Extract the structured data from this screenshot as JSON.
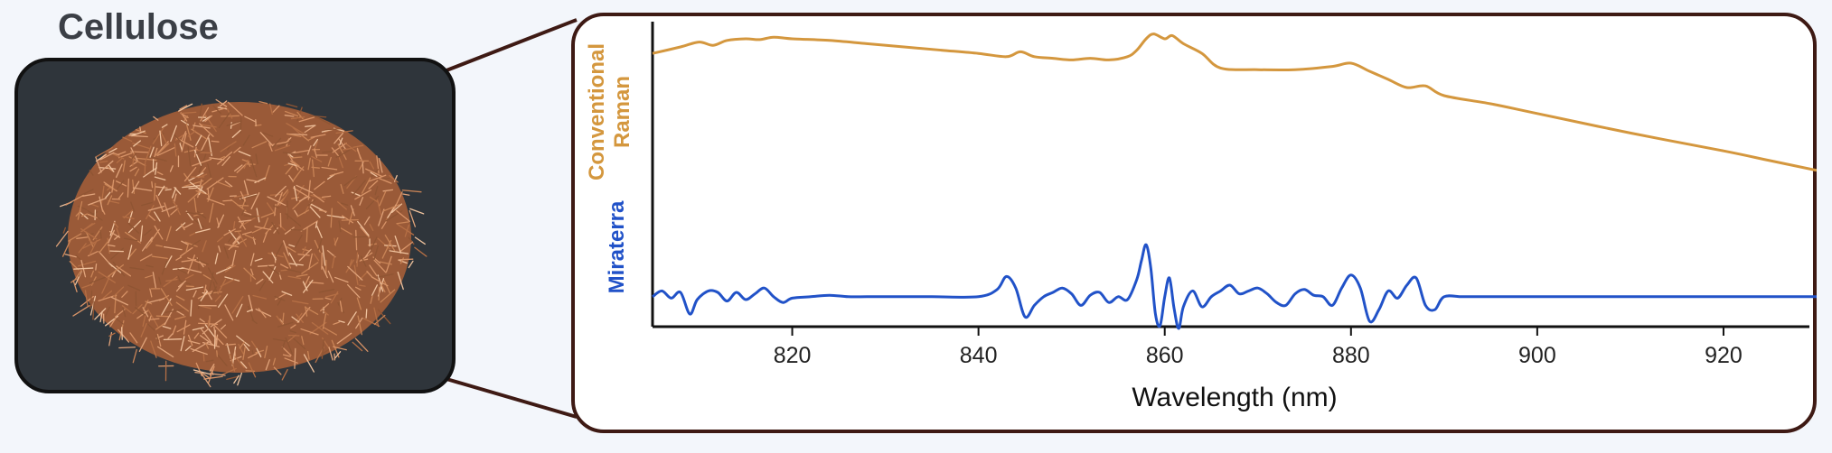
{
  "sample": {
    "title": "Cellulose"
  },
  "colors": {
    "conventional": "#d4973e",
    "miraterra": "#2152c8",
    "frame": "#3e1a14",
    "photo_fiber": "#c98456"
  },
  "icons": {
    "photo": "cellulose-fiber-photo"
  },
  "chart_data": {
    "type": "line",
    "xlabel": "Wavelength (nm)",
    "xlim": [
      805,
      930
    ],
    "xticks": [
      820,
      840,
      860,
      880,
      900,
      920
    ],
    "grid": false,
    "series": [
      {
        "name": "Conventional Raman",
        "label_lines": [
          "Conventional",
          "Raman"
        ],
        "color": "#d4973e",
        "x": [
          805,
          808,
          810,
          811.5,
          813,
          815,
          816.5,
          818,
          820,
          824,
          828,
          832,
          836,
          840,
          843,
          844.5,
          846,
          848,
          850,
          852,
          854,
          856,
          857,
          858,
          858.8,
          860,
          860.8,
          862,
          864,
          866,
          870,
          874,
          878,
          880,
          882,
          884,
          886,
          888,
          890,
          895,
          900,
          910,
          920,
          925,
          930
        ],
        "y": [
          0.86,
          0.9,
          0.93,
          0.91,
          0.94,
          0.95,
          0.945,
          0.96,
          0.95,
          0.94,
          0.92,
          0.9,
          0.88,
          0.86,
          0.84,
          0.87,
          0.84,
          0.83,
          0.82,
          0.83,
          0.82,
          0.84,
          0.88,
          0.95,
          0.98,
          0.95,
          0.97,
          0.92,
          0.86,
          0.77,
          0.76,
          0.76,
          0.78,
          0.8,
          0.75,
          0.7,
          0.65,
          0.66,
          0.6,
          0.55,
          0.49,
          0.37,
          0.26,
          0.2,
          0.14
        ]
      },
      {
        "name": "Miraterra",
        "label_lines": [
          "Miraterra"
        ],
        "color": "#2152c8",
        "x": [
          805,
          806,
          807,
          808,
          809,
          809.8,
          811,
          812,
          813,
          814,
          815,
          816,
          817,
          818,
          819,
          820,
          822,
          824,
          826,
          828,
          830,
          835,
          840,
          842,
          843,
          844,
          845,
          846,
          847,
          848,
          849,
          850,
          851,
          852,
          853,
          854,
          855,
          856,
          857,
          857.5,
          858,
          858.5,
          859,
          859.5,
          860,
          860.5,
          861,
          861.5,
          862,
          863,
          864,
          865,
          866,
          867,
          868,
          869,
          870,
          871,
          872,
          873,
          874,
          875,
          876,
          877,
          878,
          879,
          880,
          881,
          882,
          883,
          884,
          885,
          886,
          887,
          888,
          889,
          890,
          892,
          895,
          900,
          910,
          920,
          930
        ],
        "y": [
          0.22,
          0.26,
          0.21,
          0.25,
          0.1,
          0.2,
          0.26,
          0.25,
          0.19,
          0.25,
          0.2,
          0.24,
          0.28,
          0.22,
          0.18,
          0.21,
          0.22,
          0.23,
          0.22,
          0.22,
          0.22,
          0.22,
          0.22,
          0.27,
          0.36,
          0.28,
          0.08,
          0.16,
          0.22,
          0.25,
          0.28,
          0.24,
          0.16,
          0.23,
          0.25,
          0.18,
          0.22,
          0.2,
          0.34,
          0.47,
          0.58,
          0.42,
          0.1,
          0.02,
          0.22,
          0.35,
          0.14,
          0.0,
          0.15,
          0.26,
          0.15,
          0.22,
          0.26,
          0.3,
          0.24,
          0.26,
          0.28,
          0.24,
          0.18,
          0.16,
          0.24,
          0.27,
          0.23,
          0.22,
          0.16,
          0.28,
          0.37,
          0.28,
          0.05,
          0.13,
          0.26,
          0.21,
          0.3,
          0.35,
          0.16,
          0.13,
          0.22,
          0.22,
          0.22,
          0.22,
          0.22,
          0.22,
          0.22
        ]
      }
    ]
  }
}
